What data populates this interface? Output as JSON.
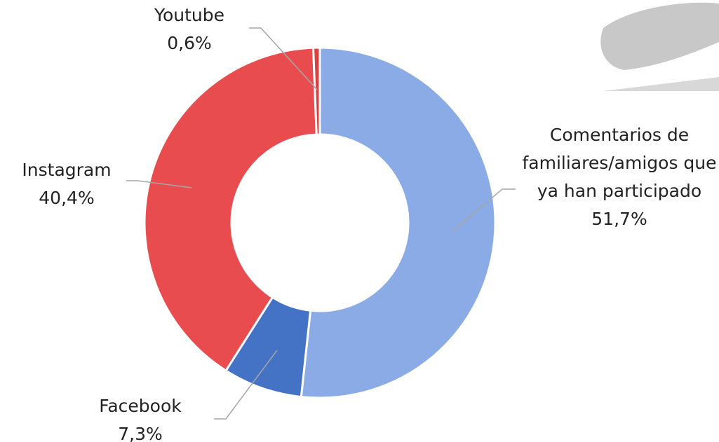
{
  "chart_data": {
    "type": "donut",
    "categories": [
      "Comentarios de familiares/amigos que ya han participado",
      "Facebook",
      "Instagram",
      "Youtube"
    ],
    "values": [
      51.7,
      7.3,
      40.4,
      0.6
    ],
    "value_labels": [
      "51,7%",
      "7,3%",
      "40,4%",
      "0,6%"
    ],
    "colors": [
      "#8aabe6",
      "#4472c4",
      "#e84c4f",
      "#d9403f"
    ]
  }
}
